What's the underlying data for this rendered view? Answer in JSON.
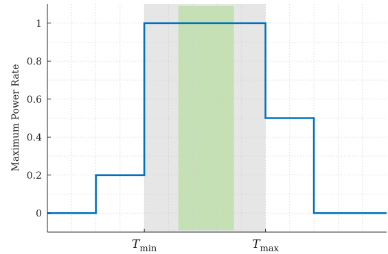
{
  "chart_data": {
    "type": "line",
    "step": true,
    "ylabel": "Maximum Power Rate",
    "xlabel": "",
    "ylim": [
      -0.1,
      1.1
    ],
    "yticks": [
      0,
      0.2,
      0.4,
      0.6,
      0.8,
      1
    ],
    "ytick_labels": [
      "0",
      "0.2",
      "0.4",
      "0.6",
      "0.8",
      "1"
    ],
    "xlim": [
      0,
      7
    ],
    "xticks": [
      2,
      4.5
    ],
    "xtick_labels": [
      {
        "main": "T",
        "sub": "min"
      },
      {
        "main": "T",
        "sub": "max"
      }
    ],
    "grid": true,
    "grid_style": "dotted",
    "series": [
      {
        "color": "#0072BD",
        "x": [
          0,
          1,
          1,
          2,
          2,
          4.5,
          4.5,
          5.5,
          5.5,
          7
        ],
        "y": [
          0,
          0,
          0.2,
          0.2,
          1,
          1,
          0.5,
          0.5,
          0,
          0
        ]
      }
    ],
    "shaded_regions": [
      {
        "x0": 2,
        "x1": 4.5,
        "color": "#e6e6e6"
      },
      {
        "x0": 2.7,
        "x1": 3.85,
        "y0": -0.09,
        "y1": 1.09,
        "color": "#c5e0b4"
      }
    ]
  }
}
